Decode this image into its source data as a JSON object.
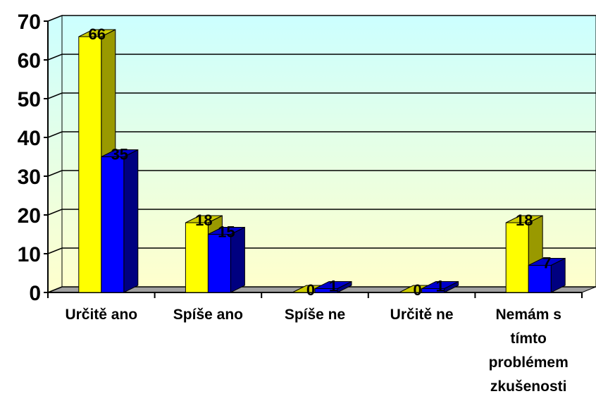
{
  "chart_data": {
    "type": "bar3d",
    "categories": [
      "Určitě ano",
      "Spíše ano",
      "Spíše ne",
      "Určitě ne",
      "Nemám s tímto problémem zkušenosti"
    ],
    "series": [
      {
        "color": "#ffff00",
        "values": [
          66,
          18,
          0,
          0,
          18
        ]
      },
      {
        "color": "#0000ff",
        "values": [
          35,
          15,
          1,
          1,
          7
        ]
      }
    ],
    "ylim": [
      0,
      70
    ],
    "yticks": [
      0,
      10,
      20,
      30,
      40,
      50,
      60,
      70
    ],
    "grid": true
  }
}
